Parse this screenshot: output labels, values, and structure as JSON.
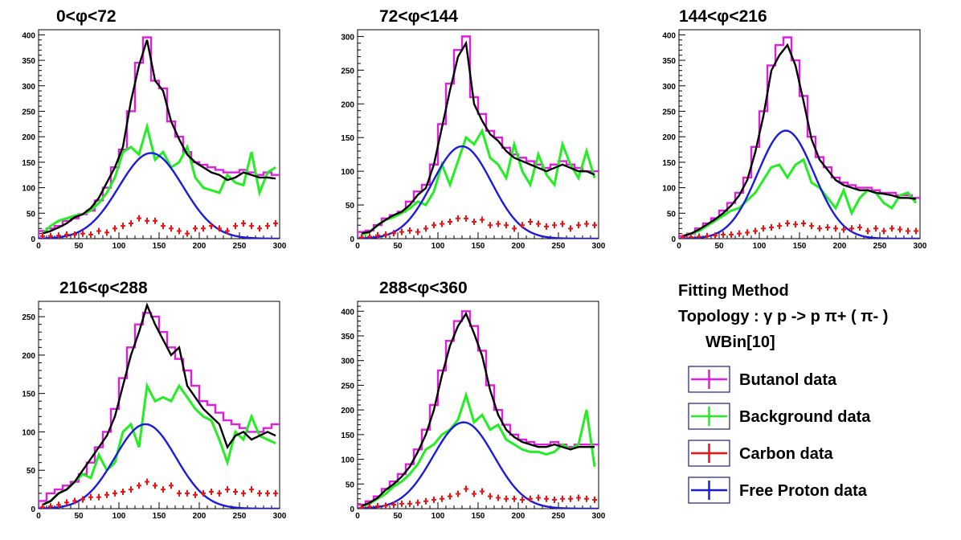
{
  "info": {
    "method": "Fitting Method",
    "topology": "Topology : γ p -> p π+ ( π- )",
    "wbin": "WBin[10]"
  },
  "legend": [
    {
      "label": "Butanol data",
      "color": "#e01ee0",
      "key": "butanol"
    },
    {
      "label": "Background data",
      "color": "#22ee22",
      "key": "background"
    },
    {
      "label": "Carbon data",
      "color": "#ee1111",
      "key": "carbon"
    },
    {
      "label": "Free Proton data",
      "color": "#1a1ae0",
      "key": "free"
    }
  ],
  "colors": {
    "butanol": "#e01ee0",
    "background": "#22ee22",
    "carbon": "#ee1111",
    "free": "#1a1ae0",
    "sum": "#000000"
  },
  "chart_data": [
    {
      "type": "line",
      "title": "0<φ<72",
      "xlim": [
        0,
        300
      ],
      "ylim": [
        0,
        410
      ],
      "xticks": [
        0,
        50,
        100,
        150,
        200,
        250,
        300
      ],
      "yticks": [
        0,
        50,
        100,
        150,
        200,
        250,
        300,
        350,
        400
      ],
      "x": [
        5,
        15,
        25,
        35,
        45,
        55,
        65,
        75,
        85,
        95,
        105,
        115,
        125,
        135,
        145,
        155,
        165,
        175,
        185,
        195,
        205,
        215,
        225,
        235,
        245,
        255,
        265,
        275,
        285,
        295
      ],
      "series": [
        {
          "key": "butanol",
          "values": [
            15,
            20,
            25,
            35,
            40,
            48,
            55,
            75,
            100,
            140,
            175,
            250,
            345,
            395,
            310,
            295,
            230,
            200,
            170,
            150,
            145,
            140,
            135,
            130,
            130,
            135,
            130,
            125,
            130,
            125
          ]
        },
        {
          "key": "sum",
          "values": [
            10,
            15,
            22,
            30,
            42,
            48,
            60,
            80,
            110,
            140,
            180,
            270,
            340,
            390,
            310,
            290,
            230,
            195,
            165,
            150,
            140,
            130,
            125,
            115,
            120,
            130,
            125,
            120,
            120,
            118
          ]
        },
        {
          "key": "background",
          "values": [
            10,
            25,
            35,
            40,
            45,
            48,
            55,
            70,
            90,
            120,
            170,
            180,
            165,
            220,
            155,
            170,
            140,
            150,
            180,
            120,
            100,
            95,
            90,
            125,
            110,
            105,
            170,
            90,
            130,
            140
          ]
        },
        {
          "key": "carbon",
          "values": [
            5,
            5,
            6,
            8,
            8,
            10,
            8,
            15,
            12,
            20,
            25,
            30,
            40,
            35,
            35,
            25,
            20,
            15,
            10,
            20,
            20,
            25,
            20,
            15,
            25,
            30,
            25,
            20,
            25,
            30
          ]
        }
      ],
      "fit": {
        "amplitude": 168,
        "mean": 140,
        "sigma": 40
      }
    },
    {
      "type": "line",
      "title": "72<φ<144",
      "xlim": [
        0,
        300
      ],
      "ylim": [
        0,
        310
      ],
      "xticks": [
        0,
        50,
        100,
        150,
        200,
        250,
        300
      ],
      "yticks": [
        0,
        50,
        100,
        150,
        200,
        250,
        300
      ],
      "x": [
        5,
        15,
        25,
        35,
        45,
        55,
        65,
        75,
        85,
        95,
        105,
        115,
        125,
        135,
        145,
        155,
        165,
        175,
        185,
        195,
        205,
        215,
        225,
        235,
        245,
        255,
        265,
        275,
        285,
        295
      ],
      "series": [
        {
          "key": "butanol",
          "values": [
            10,
            12,
            20,
            30,
            35,
            40,
            55,
            70,
            80,
            110,
            170,
            230,
            280,
            300,
            210,
            185,
            160,
            150,
            135,
            125,
            120,
            115,
            110,
            105,
            110,
            115,
            110,
            105,
            100,
            100
          ]
        },
        {
          "key": "sum",
          "values": [
            8,
            10,
            20,
            28,
            35,
            40,
            50,
            65,
            75,
            110,
            165,
            220,
            270,
            290,
            200,
            175,
            155,
            145,
            130,
            120,
            115,
            110,
            105,
            100,
            105,
            110,
            105,
            100,
            100,
            95
          ]
        },
        {
          "key": "background",
          "values": [
            5,
            10,
            20,
            28,
            32,
            38,
            45,
            55,
            50,
            70,
            110,
            80,
            115,
            150,
            140,
            160,
            120,
            110,
            90,
            140,
            100,
            80,
            125,
            95,
            80,
            140,
            110,
            90,
            130,
            90
          ]
        },
        {
          "key": "carbon",
          "values": [
            2,
            3,
            5,
            6,
            8,
            10,
            12,
            10,
            15,
            20,
            22,
            25,
            30,
            30,
            25,
            28,
            20,
            22,
            20,
            15,
            20,
            25,
            22,
            18,
            20,
            22,
            15,
            20,
            22,
            20
          ]
        }
      ],
      "fit": {
        "amplitude": 137,
        "mean": 130,
        "sigma": 37
      }
    },
    {
      "type": "line",
      "title": "144<φ<216",
      "xlim": [
        0,
        300
      ],
      "ylim": [
        0,
        410
      ],
      "xticks": [
        0,
        50,
        100,
        150,
        200,
        250,
        300
      ],
      "yticks": [
        0,
        50,
        100,
        150,
        200,
        250,
        300,
        350,
        400
      ],
      "x": [
        5,
        15,
        25,
        35,
        45,
        55,
        65,
        75,
        85,
        95,
        105,
        115,
        125,
        135,
        145,
        155,
        165,
        175,
        185,
        195,
        205,
        215,
        225,
        235,
        245,
        255,
        265,
        275,
        285,
        295
      ],
      "series": [
        {
          "key": "butanol",
          "values": [
            5,
            10,
            20,
            30,
            40,
            55,
            70,
            90,
            120,
            180,
            250,
            340,
            380,
            395,
            350,
            280,
            200,
            160,
            140,
            120,
            110,
            105,
            100,
            100,
            95,
            90,
            90,
            85,
            85,
            80
          ]
        },
        {
          "key": "sum",
          "values": [
            5,
            10,
            18,
            28,
            38,
            50,
            65,
            85,
            115,
            170,
            240,
            330,
            360,
            380,
            340,
            270,
            195,
            155,
            135,
            115,
            105,
            100,
            95,
            95,
            90,
            88,
            85,
            80,
            80,
            78
          ]
        },
        {
          "key": "background",
          "values": [
            5,
            10,
            15,
            25,
            35,
            45,
            55,
            60,
            75,
            90,
            115,
            140,
            145,
            120,
            145,
            155,
            110,
            100,
            80,
            60,
            95,
            50,
            80,
            95,
            90,
            70,
            60,
            85,
            90,
            70
          ]
        },
        {
          "key": "carbon",
          "values": [
            2,
            3,
            4,
            5,
            6,
            8,
            8,
            10,
            12,
            15,
            20,
            22,
            25,
            30,
            28,
            30,
            25,
            20,
            22,
            20,
            18,
            20,
            22,
            15,
            20,
            15,
            20,
            18,
            15,
            15
          ]
        }
      ],
      "fit": {
        "amplitude": 212,
        "mean": 133,
        "sigma": 35
      }
    },
    {
      "type": "line",
      "title": "216<φ<288",
      "xlim": [
        0,
        300
      ],
      "ylim": [
        0,
        270
      ],
      "xticks": [
        0,
        50,
        100,
        150,
        200,
        250,
        300
      ],
      "yticks": [
        0,
        50,
        100,
        150,
        200,
        250
      ],
      "x": [
        5,
        15,
        25,
        35,
        45,
        55,
        65,
        75,
        85,
        95,
        105,
        115,
        125,
        135,
        145,
        155,
        165,
        175,
        185,
        195,
        205,
        215,
        225,
        235,
        245,
        255,
        265,
        275,
        285,
        295
      ],
      "series": [
        {
          "key": "butanol",
          "values": [
            10,
            20,
            25,
            30,
            35,
            45,
            60,
            80,
            100,
            130,
            170,
            210,
            240,
            255,
            250,
            230,
            210,
            195,
            180,
            160,
            140,
            135,
            125,
            115,
            110,
            105,
            100,
            100,
            105,
            110
          ]
        },
        {
          "key": "sum",
          "values": [
            5,
            10,
            20,
            25,
            35,
            50,
            65,
            80,
            95,
            120,
            160,
            200,
            230,
            265,
            240,
            220,
            200,
            210,
            160,
            145,
            130,
            120,
            110,
            80,
            95,
            100,
            90,
            95,
            100,
            95
          ]
        },
        {
          "key": "background",
          "values": [
            5,
            10,
            20,
            25,
            35,
            45,
            40,
            70,
            50,
            60,
            100,
            110,
            80,
            160,
            140,
            145,
            140,
            160,
            145,
            130,
            120,
            115,
            90,
            60,
            100,
            90,
            120,
            95,
            90,
            85
          ]
        },
        {
          "key": "carbon",
          "values": [
            2,
            3,
            5,
            8,
            10,
            12,
            15,
            15,
            18,
            20,
            22,
            25,
            30,
            35,
            30,
            25,
            30,
            20,
            20,
            18,
            20,
            22,
            20,
            25,
            22,
            20,
            25,
            20,
            20,
            20
          ]
        }
      ],
      "fit": {
        "amplitude": 110,
        "mean": 133,
        "sigma": 38
      }
    },
    {
      "type": "line",
      "title": "288<φ<360",
      "xlim": [
        0,
        300
      ],
      "ylim": [
        0,
        420
      ],
      "xticks": [
        0,
        50,
        100,
        150,
        200,
        250,
        300
      ],
      "yticks": [
        0,
        50,
        100,
        150,
        200,
        250,
        300,
        350,
        400
      ],
      "x": [
        5,
        15,
        25,
        35,
        45,
        55,
        65,
        75,
        85,
        95,
        105,
        115,
        125,
        135,
        145,
        155,
        165,
        175,
        185,
        195,
        205,
        215,
        225,
        235,
        245,
        255,
        265,
        275,
        285,
        295
      ],
      "series": [
        {
          "key": "butanol",
          "values": [
            8,
            15,
            25,
            40,
            55,
            70,
            90,
            120,
            160,
            210,
            280,
            340,
            380,
            400,
            370,
            320,
            250,
            200,
            170,
            150,
            140,
            135,
            130,
            130,
            135,
            130,
            125,
            130,
            130,
            130
          ]
        },
        {
          "key": "sum",
          "values": [
            5,
            12,
            22,
            38,
            50,
            65,
            85,
            115,
            150,
            200,
            270,
            330,
            370,
            395,
            355,
            310,
            240,
            190,
            160,
            145,
            135,
            130,
            125,
            125,
            130,
            125,
            120,
            125,
            125,
            125
          ]
        },
        {
          "key": "background",
          "values": [
            5,
            10,
            20,
            30,
            45,
            55,
            70,
            90,
            120,
            130,
            150,
            160,
            180,
            230,
            175,
            190,
            160,
            170,
            140,
            130,
            120,
            115,
            115,
            110,
            115,
            130,
            120,
            130,
            200,
            85
          ]
        },
        {
          "key": "carbon",
          "values": [
            2,
            4,
            5,
            6,
            8,
            10,
            10,
            12,
            15,
            18,
            20,
            25,
            30,
            40,
            30,
            35,
            25,
            22,
            20,
            20,
            18,
            20,
            22,
            20,
            18,
            20,
            20,
            22,
            20,
            18
          ]
        }
      ],
      "fit": {
        "amplitude": 175,
        "mean": 132,
        "sigma": 38
      }
    }
  ]
}
